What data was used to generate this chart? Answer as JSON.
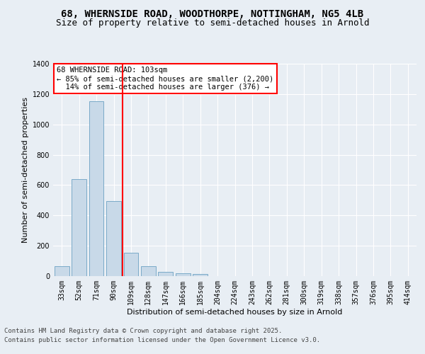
{
  "title_line1": "68, WHERNSIDE ROAD, WOODTHORPE, NOTTINGHAM, NG5 4LB",
  "title_line2": "Size of property relative to semi-detached houses in Arnold",
  "xlabel": "Distribution of semi-detached houses by size in Arnold",
  "ylabel": "Number of semi-detached properties",
  "categories": [
    "33sqm",
    "52sqm",
    "71sqm",
    "90sqm",
    "109sqm",
    "128sqm",
    "147sqm",
    "166sqm",
    "185sqm",
    "204sqm",
    "224sqm",
    "243sqm",
    "262sqm",
    "281sqm",
    "300sqm",
    "319sqm",
    "338sqm",
    "357sqm",
    "376sqm",
    "395sqm",
    "414sqm"
  ],
  "values": [
    65,
    640,
    1155,
    495,
    155,
    65,
    30,
    20,
    15,
    0,
    0,
    0,
    0,
    0,
    0,
    0,
    0,
    0,
    0,
    0,
    0
  ],
  "bar_color": "#c8d9e8",
  "bar_edge_color": "#7aaac8",
  "reference_line_x": 3.5,
  "reference_line_color": "red",
  "annotation_text": "68 WHERNSIDE ROAD: 103sqm\n← 85% of semi-detached houses are smaller (2,200)\n  14% of semi-detached houses are larger (376) →",
  "annotation_box_color": "white",
  "annotation_box_edge_color": "red",
  "ylim": [
    0,
    1400
  ],
  "yticks": [
    0,
    200,
    400,
    600,
    800,
    1000,
    1200,
    1400
  ],
  "background_color": "#e8eef4",
  "plot_background_color": "#e8eef4",
  "footer_line1": "Contains HM Land Registry data © Crown copyright and database right 2025.",
  "footer_line2": "Contains public sector information licensed under the Open Government Licence v3.0.",
  "title_fontsize": 10,
  "subtitle_fontsize": 9,
  "footer_fontsize": 6.5,
  "annotation_fontsize": 7.5,
  "axis_label_fontsize": 8,
  "tick_fontsize": 7
}
